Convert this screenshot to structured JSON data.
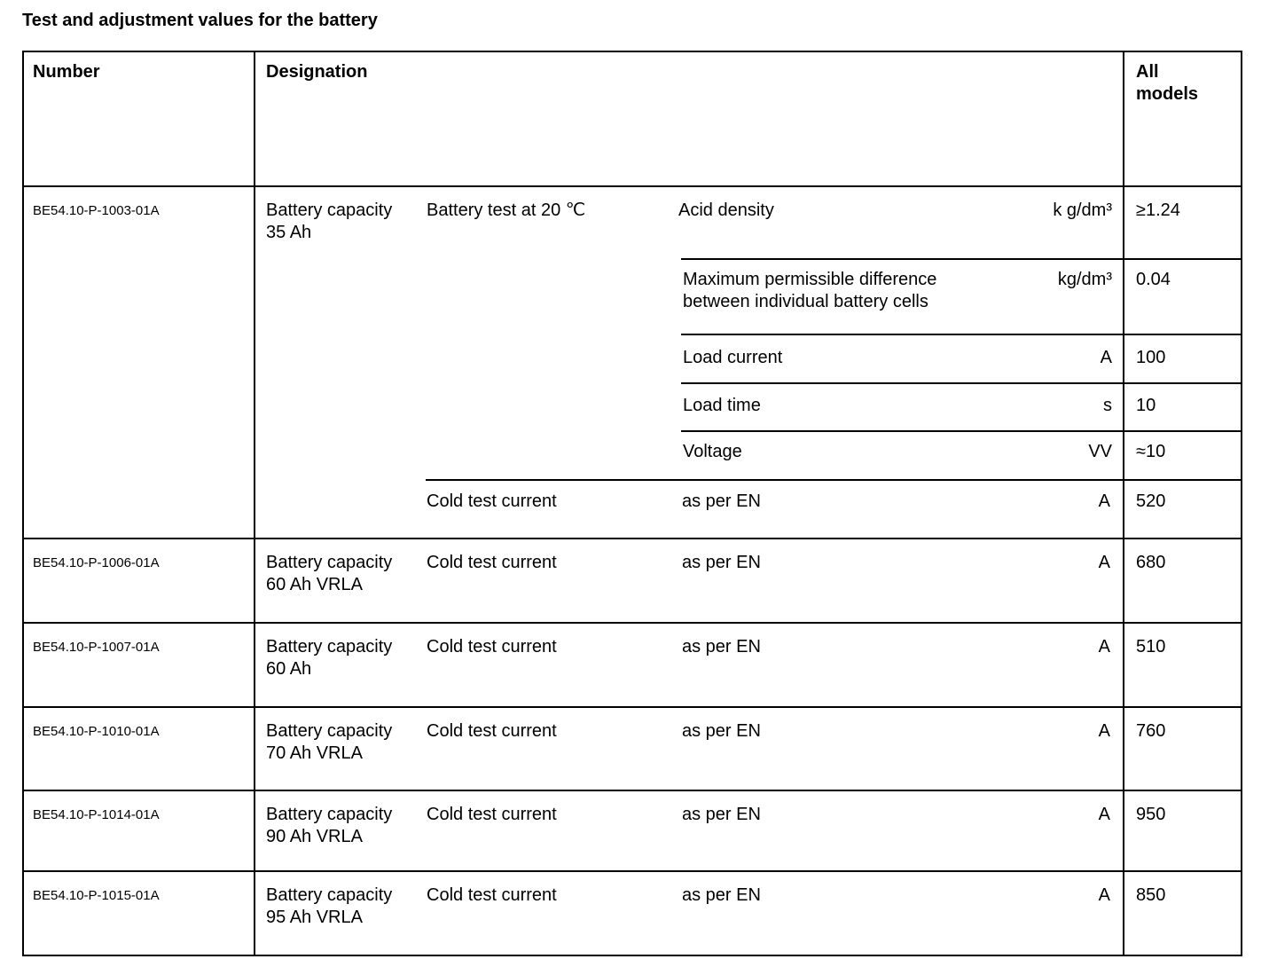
{
  "title": "Test and adjustment values for the battery",
  "headers": {
    "number": "Number",
    "designation": "Designation",
    "all_models": "All\nmodels"
  },
  "first_row": {
    "number": "BE54.10-P-1003-01A",
    "designation": "Battery capacity\n35 Ah",
    "test_group": "Battery test at 20 ℃",
    "params": [
      {
        "name": "Acid density",
        "unit": "k g/dm³",
        "value": "≥1.24"
      },
      {
        "name": "Maximum permissible difference\nbetween individual battery cells",
        "unit": "kg/dm³",
        "value": "0.04"
      },
      {
        "name": "Load current",
        "unit": "A",
        "value": "100"
      },
      {
        "name": "Load time",
        "unit": "s",
        "value": "10"
      },
      {
        "name": "Voltage",
        "unit": "VV",
        "value": "≈10"
      }
    ],
    "cold_test": {
      "name": "Cold test current",
      "spec": "as per EN",
      "unit": "A",
      "value": "520"
    }
  },
  "rows": [
    {
      "number": "BE54.10-P-1006-01A",
      "designation": "Battery capacity\n60 Ah VRLA",
      "test": "Cold test current",
      "spec": "as per EN",
      "unit": "A",
      "value": "680"
    },
    {
      "number": "BE54.10-P-1007-01A",
      "designation": "Battery capacity\n60 Ah",
      "test": "Cold test current",
      "spec": "as per EN",
      "unit": "A",
      "value": "510"
    },
    {
      "number": "BE54.10-P-1010-01A",
      "designation": "Battery capacity\n70 Ah VRLA",
      "test": "Cold test current",
      "spec": "as per EN",
      "unit": "A",
      "value": "760"
    },
    {
      "number": "BE54.10-P-1014-01A",
      "designation": "Battery capacity\n90 Ah VRLA",
      "test": "Cold test current",
      "spec": "as per EN",
      "unit": "A",
      "value": "950"
    },
    {
      "number": "BE54.10-P-1015-01A",
      "designation": "Battery capacity\n95 Ah VRLA",
      "test": "Cold test current",
      "spec": "as per EN",
      "unit": "A",
      "value": "850"
    }
  ]
}
